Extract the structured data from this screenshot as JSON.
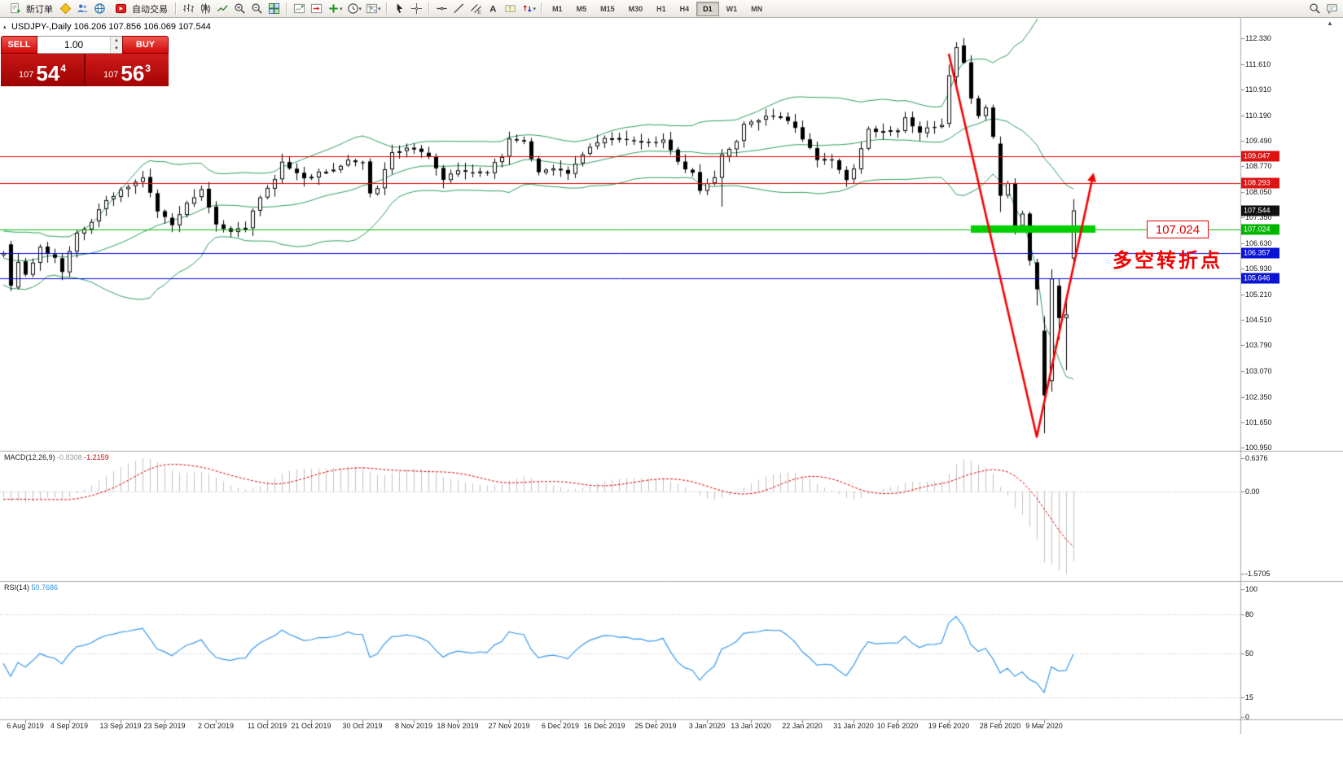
{
  "colors": {
    "band": "#2f9e5f",
    "bull": "#ffffff",
    "bear": "#000000",
    "highlight": "#00cf00",
    "arrow": "#f50000",
    "macd_hist": "#c2c2c2",
    "macd_signal": "#e00000",
    "rsi_line": "#3a99e8",
    "tag_red": "#dc1414",
    "tag_black": "#101010",
    "tag_green": "#00b400",
    "tag_blue": "#0a14d2"
  },
  "toolbar": {
    "new_order_label": "新订单",
    "auto_trading_label": "自动交易",
    "timeframes": [
      "M1",
      "M5",
      "M15",
      "M30",
      "H1",
      "H4",
      "D1",
      "W1",
      "MN"
    ],
    "active_timeframe": "D1"
  },
  "chart": {
    "symbol_title": "USDJPY-,Daily 106.206 107.856 106.069 107.544"
  },
  "trade_panel": {
    "sell_label": "SELL",
    "buy_label": "BUY",
    "volume": "1.00",
    "sell_small": "107",
    "sell_big": "54",
    "sell_sup": "4",
    "buy_small": "107",
    "buy_big": "56",
    "buy_sup": "3"
  },
  "annotations": {
    "price_box": "107.024",
    "turning_point": "多空转折点"
  },
  "price_axis": {
    "ticks": [
      "112.330",
      "111.610",
      "110.910",
      "110.190",
      "109.490",
      "108.770",
      "108.050",
      "107.350",
      "106.630",
      "105.930",
      "105.210",
      "104.510",
      "103.790",
      "103.070",
      "102.350",
      "101.650",
      "100.950"
    ],
    "tags": [
      {
        "value": "109.047",
        "price": 109.047,
        "color": "red"
      },
      {
        "value": "108.293",
        "price": 108.293,
        "color": "red"
      },
      {
        "value": "107.544",
        "price": 107.544,
        "color": "black"
      },
      {
        "value": "107.024",
        "price": 107.024,
        "color": "green"
      },
      {
        "value": "106.357",
        "price": 106.357,
        "color": "blue"
      },
      {
        "value": "105.646",
        "price": 105.646,
        "color": "blue"
      }
    ]
  },
  "levels": [
    {
      "price": 109.047,
      "color": "#e00000"
    },
    {
      "price": 108.293,
      "color": "#e00000"
    },
    {
      "price": 107.024,
      "color": "#00c000"
    },
    {
      "price": 106.357,
      "color": "#0000e0"
    },
    {
      "price": 105.646,
      "color": "#0000e0"
    }
  ],
  "macd": {
    "label": "MACD(12,26,9)",
    "value_main": "-0.8308",
    "value_signal": "-1.2159",
    "scale": [
      "0.6376",
      "0.00",
      "-1.5705"
    ],
    "range": [
      0.6376,
      -1.5705
    ]
  },
  "rsi": {
    "label": "RSI(14)",
    "value": "50.7686",
    "scale": [
      100,
      80,
      50,
      15,
      0
    ]
  },
  "dates": [
    {
      "idx": 3,
      "label": "6 Aug 2019"
    },
    {
      "idx": 9,
      "label": "4 Sep 2019"
    },
    {
      "idx": 16,
      "label": "13 Sep 2019"
    },
    {
      "idx": 22,
      "label": "23 Sep 2019"
    },
    {
      "idx": 29,
      "label": "2 Oct 2019"
    },
    {
      "idx": 36,
      "label": "11 Oct 2019"
    },
    {
      "idx": 42,
      "label": "21 Oct 2019"
    },
    {
      "idx": 49,
      "label": "30 Oct 2019"
    },
    {
      "idx": 56,
      "label": "8 Nov 2019"
    },
    {
      "idx": 62,
      "label": "18 Nov 2019"
    },
    {
      "idx": 69,
      "label": "27 Nov 2019"
    },
    {
      "idx": 76,
      "label": "6 Dec 2019"
    },
    {
      "idx": 82,
      "label": "16 Dec 2019"
    },
    {
      "idx": 89,
      "label": "25 Dec 2019"
    },
    {
      "idx": 96,
      "label": "3 Jan 2020"
    },
    {
      "idx": 102,
      "label": "13 Jan 2020"
    },
    {
      "idx": 109,
      "label": "22 Jan 2020"
    },
    {
      "idx": 116,
      "label": "31 Jan 2020"
    },
    {
      "idx": 122,
      "label": "10 Feb 2020"
    },
    {
      "idx": 129,
      "label": "19 Feb 2020"
    },
    {
      "idx": 136,
      "label": "28 Feb 2020"
    },
    {
      "idx": 142,
      "label": "9 Mar 2020"
    }
  ],
  "chart_data": {
    "type": "candlestick",
    "symbol": "USDJPY",
    "period": "Daily",
    "last_candle": {
      "open": 106.206,
      "high": 107.856,
      "low": 106.069,
      "close": 107.544
    },
    "visible_bars": 147,
    "warmup_bars": 20,
    "seed": 11,
    "price_axis_top": 112.33,
    "price_axis_bottom": 100.95,
    "bollinger": {
      "period": 20,
      "deviation": 2
    },
    "macd_params": {
      "fast": 12,
      "slow": 26,
      "signal": 9
    },
    "rsi_params": {
      "period": 14
    },
    "anchors": [
      [
        -20,
        107.1
      ],
      [
        -18,
        106.3
      ],
      [
        -16,
        105.55
      ],
      [
        -14,
        105.35
      ],
      [
        -12,
        106.55
      ],
      [
        -10,
        106.15
      ],
      [
        -8,
        106.6
      ],
      [
        -6,
        106.35
      ],
      [
        -4,
        106.55
      ],
      [
        -2,
        106.3
      ],
      [
        0,
        106.35
      ],
      [
        1,
        105.45
      ],
      [
        2,
        106.1
      ],
      [
        3,
        105.75
      ],
      [
        4,
        106.1
      ],
      [
        5,
        106.5
      ],
      [
        6,
        106.3
      ],
      [
        7,
        106.2
      ],
      [
        8,
        105.85
      ],
      [
        9,
        106.4
      ],
      [
        10,
        106.95
      ],
      [
        12,
        107.2
      ],
      [
        14,
        107.85
      ],
      [
        16,
        108.1
      ],
      [
        19,
        108.45
      ],
      [
        21,
        107.55
      ],
      [
        23,
        107.1
      ],
      [
        25,
        107.8
      ],
      [
        27,
        108.1
      ],
      [
        29,
        107.15
      ],
      [
        31,
        106.95
      ],
      [
        33,
        107.1
      ],
      [
        35,
        107.95
      ],
      [
        37,
        108.4
      ],
      [
        38,
        108.85
      ],
      [
        41,
        108.45
      ],
      [
        43,
        108.6
      ],
      [
        45,
        108.65
      ],
      [
        47,
        108.95
      ],
      [
        49,
        108.85
      ],
      [
        50,
        108.05
      ],
      [
        51,
        108.2
      ],
      [
        53,
        109.15
      ],
      [
        55,
        109.3
      ],
      [
        56,
        109.25
      ],
      [
        58,
        109.0
      ],
      [
        60,
        108.4
      ],
      [
        62,
        108.65
      ],
      [
        64,
        108.6
      ],
      [
        66,
        108.65
      ],
      [
        68,
        109.05
      ],
      [
        69,
        109.55
      ],
      [
        71,
        109.5
      ],
      [
        72,
        108.95
      ],
      [
        73,
        108.6
      ],
      [
        75,
        108.75
      ],
      [
        77,
        108.55
      ],
      [
        80,
        109.3
      ],
      [
        82,
        109.55
      ],
      [
        84,
        109.55
      ],
      [
        86,
        109.45
      ],
      [
        88,
        109.4
      ],
      [
        90,
        109.55
      ],
      [
        92,
        108.85
      ],
      [
        94,
        108.55
      ],
      [
        95,
        108.1
      ],
      [
        97,
        108.45
      ],
      [
        98,
        109.1
      ],
      [
        100,
        109.45
      ],
      [
        101,
        109.95
      ],
      [
        102,
        110.0
      ],
      [
        104,
        110.15
      ],
      [
        106,
        110.2
      ],
      [
        108,
        109.85
      ],
      [
        110,
        109.25
      ],
      [
        111,
        108.9
      ],
      [
        113,
        109.0
      ],
      [
        115,
        108.35
      ],
      [
        116,
        108.7
      ],
      [
        118,
        109.8
      ],
      [
        120,
        109.75
      ],
      [
        122,
        109.8
      ],
      [
        123,
        110.1
      ],
      [
        125,
        109.75
      ],
      [
        127,
        109.85
      ],
      [
        128,
        109.9
      ],
      [
        129,
        111.3
      ],
      [
        130,
        112.08
      ],
      [
        131,
        111.6
      ],
      [
        132,
        110.7
      ],
      [
        133,
        110.2
      ],
      [
        134,
        110.4
      ],
      [
        135,
        109.6
      ],
      [
        136,
        107.95
      ],
      [
        137,
        108.3
      ],
      [
        138,
        107.15
      ],
      [
        139,
        107.5
      ],
      [
        140,
        106.15
      ],
      [
        141,
        105.35
      ],
      [
        142,
        102.4
      ],
      [
        143,
        105.65
      ],
      [
        144,
        104.55
      ],
      [
        145,
        104.65
      ],
      [
        146,
        107.544
      ]
    ],
    "key_candles": {
      "1": [
        106.6,
        106.7,
        105.3,
        105.45
      ],
      "98": [
        108.45,
        109.25,
        107.65,
        109.1
      ],
      "129": [
        109.95,
        111.6,
        109.85,
        111.3
      ],
      "130": [
        111.25,
        112.22,
        110.95,
        112.08
      ],
      "136": [
        109.4,
        109.6,
        107.5,
        107.95
      ],
      "141": [
        106.1,
        106.2,
        104.9,
        105.35
      ],
      "142": [
        104.2,
        104.6,
        101.35,
        102.4
      ],
      "143": [
        102.8,
        105.9,
        102.5,
        105.65
      ],
      "144": [
        105.45,
        105.65,
        103.95,
        104.55
      ],
      "145": [
        104.55,
        105.05,
        103.1,
        104.65
      ],
      "146": [
        106.206,
        107.856,
        106.069,
        107.544
      ]
    },
    "trend_arrow": [
      [
        129,
        111.9
      ],
      [
        141,
        101.25
      ],
      [
        148.5,
        108.35
      ]
    ],
    "highlight_zone": {
      "price": 107.024,
      "idx1": 132,
      "idx2": 149
    }
  }
}
